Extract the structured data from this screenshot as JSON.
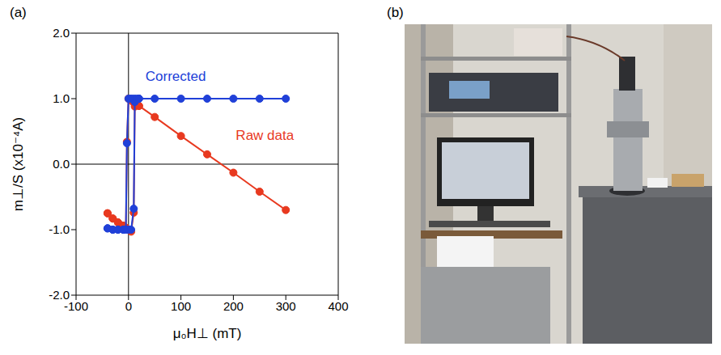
{
  "panel_labels": [
    "(a)",
    "(b)"
  ],
  "chart_data": {
    "type": "scatter",
    "x_label": "μ₀H⊥ (mT)",
    "y_label": "m⊥/S (x10⁻⁴A)",
    "xlim": [
      -100,
      400
    ],
    "xticks": [
      -100,
      0,
      100,
      200,
      300,
      400
    ],
    "ylim": [
      -2,
      2
    ],
    "yticks": [
      {
        "value": -2,
        "label": "-2.0"
      },
      {
        "value": -1,
        "label": "-1.0"
      },
      {
        "value": 0,
        "label": "0.0"
      },
      {
        "value": 1,
        "label": "1.0"
      },
      {
        "value": 2,
        "label": "2.0"
      }
    ],
    "marker": "circle",
    "line_style": "solid",
    "x": [
      300,
      250,
      200,
      150,
      100,
      50,
      20,
      10,
      5,
      0,
      -3,
      -5,
      -10,
      -20,
      -30,
      -40,
      -40,
      -30,
      -20,
      -10,
      0,
      5,
      10,
      12,
      15,
      20
    ],
    "series": [
      {
        "name": "Raw data",
        "color": "#e8391f",
        "values": [
          -0.7,
          -0.42,
          -0.13,
          0.15,
          0.43,
          0.72,
          0.89,
          0.94,
          0.97,
          1.0,
          0.34,
          -0.97,
          -0.94,
          -0.89,
          -0.83,
          -0.75,
          -0.75,
          -0.83,
          -0.89,
          -0.94,
          -1.0,
          -1.03,
          -0.74,
          0.88,
          0.91,
          0.89
        ]
      },
      {
        "name": "Corrected",
        "color": "#2040d8",
        "values": [
          1.0,
          1.0,
          1.0,
          1.0,
          1.0,
          1.0,
          1.0,
          1.0,
          1.0,
          1.0,
          0.32,
          -1.0,
          -1.0,
          -1.0,
          -1.0,
          -0.98,
          -0.98,
          -1.0,
          -1.0,
          -1.0,
          -1.0,
          -1.0,
          -0.68,
          0.95,
          1.0,
          1.0
        ]
      }
    ],
    "annotations": [
      {
        "text": "Corrected",
        "x": 90,
        "y": 1.35,
        "color": "#2040d8"
      },
      {
        "text": "Raw data",
        "x": 260,
        "y": 0.45,
        "color": "#e8391f"
      }
    ]
  }
}
